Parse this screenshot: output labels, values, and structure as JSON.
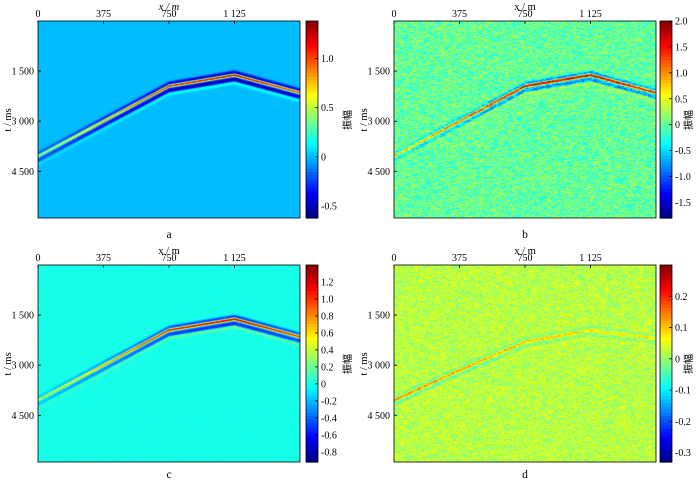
{
  "chart_data": [
    {
      "type": "heatmap",
      "caption": "a",
      "xlabel": "x / m",
      "ylabel": "t / ms",
      "x_ticks": [
        "0",
        "375",
        "750",
        "1 125"
      ],
      "y_ticks": [
        "1 500",
        "3 000",
        "4 500"
      ],
      "x_tick_values": [
        0,
        375,
        750,
        1125
      ],
      "y_tick_values": [
        1500,
        3000,
        4500
      ],
      "xlim": [
        0,
        1500
      ],
      "ylim": [
        0,
        5900
      ],
      "colorbar_label": "振幅",
      "colorbar_ticks": [
        "1.0",
        "0.5",
        "0",
        "-0.5"
      ],
      "colorbar_tick_values": [
        1.0,
        0.5,
        0,
        -0.5
      ],
      "colorbar_range": [
        -0.62,
        1.38
      ],
      "colormap": "jet",
      "background_value": 0,
      "noise": 0,
      "events": [
        {
          "x": [
            0,
            750,
            1125,
            1500
          ],
          "t": [
            4050,
            1950,
            1620,
            2150
          ],
          "amp": [
            0.45,
            1.1,
            1.2,
            1.0
          ]
        }
      ]
    },
    {
      "type": "heatmap",
      "caption": "b",
      "xlabel": "x / m",
      "ylabel": "t / ms",
      "x_ticks": [
        "0",
        "375",
        "750",
        "1 125"
      ],
      "y_ticks": [
        "1 500",
        "3 000",
        "4 500"
      ],
      "x_tick_values": [
        0,
        375,
        750,
        1125
      ],
      "y_tick_values": [
        1500,
        3000,
        4500
      ],
      "xlim": [
        0,
        1500
      ],
      "ylim": [
        0,
        5900
      ],
      "colorbar_label": "振幅",
      "colorbar_ticks": [
        "2.0",
        "1.5",
        "1.0",
        "0.5",
        "0",
        "-0.5",
        "-1.0",
        "-1.5"
      ],
      "colorbar_tick_values": [
        2.0,
        1.5,
        1.0,
        0.5,
        0,
        -0.5,
        -1.0,
        -1.5
      ],
      "colorbar_range": [
        -1.8,
        2.0
      ],
      "colormap": "jet",
      "background_value": 0,
      "noise": 0.32,
      "events": [
        {
          "x": [
            0,
            750,
            1125,
            1500
          ],
          "t": [
            4050,
            1950,
            1620,
            2150
          ],
          "amp": [
            0.6,
            1.7,
            1.8,
            1.5
          ]
        }
      ]
    },
    {
      "type": "heatmap",
      "caption": "c",
      "xlabel": "x / m",
      "ylabel": "t / ms",
      "x_ticks": [
        "0",
        "375",
        "750",
        "1 125"
      ],
      "y_ticks": [
        "1 500",
        "3 000",
        "4 500"
      ],
      "x_tick_values": [
        0,
        375,
        750,
        1125
      ],
      "y_tick_values": [
        1500,
        3000,
        4500
      ],
      "xlim": [
        0,
        1500
      ],
      "ylim": [
        0,
        5900
      ],
      "colorbar_label": "振幅",
      "colorbar_ticks": [
        "1.2",
        "1.0",
        "0.8",
        "0.6",
        "0.4",
        "0.2",
        "0",
        "-0.2",
        "-0.4",
        "-0.6",
        "-0.8"
      ],
      "colorbar_tick_values": [
        1.2,
        1.0,
        0.8,
        0.6,
        0.4,
        0.2,
        0,
        -0.2,
        -0.4,
        -0.6,
        -0.8
      ],
      "colorbar_range": [
        -0.92,
        1.4
      ],
      "colormap": "jet",
      "background_value": 0,
      "noise": 0.02,
      "events": [
        {
          "x": [
            0,
            750,
            1125,
            1500
          ],
          "t": [
            4050,
            1950,
            1620,
            2150
          ],
          "amp": [
            0.35,
            1.1,
            1.25,
            1.0
          ]
        }
      ]
    },
    {
      "type": "heatmap",
      "caption": "d",
      "xlabel": "x / m",
      "ylabel": "t / ms",
      "x_ticks": [
        "0",
        "375",
        "750",
        "1 125"
      ],
      "y_ticks": [
        "1 500",
        "3 000",
        "4 500"
      ],
      "x_tick_values": [
        0,
        375,
        750,
        1125
      ],
      "y_tick_values": [
        1500,
        3000,
        4500
      ],
      "xlim": [
        0,
        1500
      ],
      "ylim": [
        0,
        5900
      ],
      "colorbar_label": "振幅",
      "colorbar_ticks": [
        "0.2",
        "0.1",
        "0",
        "-0.1",
        "-0.2",
        "-0.3"
      ],
      "colorbar_tick_values": [
        0.2,
        0.1,
        0,
        -0.1,
        -0.2,
        -0.3
      ],
      "colorbar_range": [
        -0.33,
        0.3
      ],
      "colormap": "jet",
      "background_value": 0.02,
      "noise": 0.04,
      "events": [
        {
          "x": [
            0,
            375,
            750,
            1125,
            1500
          ],
          "t": [
            4050,
            3150,
            2300,
            1950,
            2200
          ],
          "amp": [
            0.12,
            0.1,
            0.08,
            0.06,
            0.05
          ]
        }
      ]
    }
  ]
}
